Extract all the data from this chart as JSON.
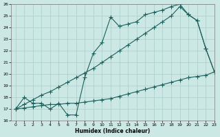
{
  "xlabel": "Humidex (Indice chaleur)",
  "xlim": [
    -0.5,
    23
  ],
  "ylim": [
    16,
    26
  ],
  "xticks": [
    0,
    1,
    2,
    3,
    4,
    5,
    6,
    7,
    8,
    9,
    10,
    11,
    12,
    13,
    14,
    15,
    16,
    17,
    18,
    19,
    20,
    21,
    22,
    23
  ],
  "yticks": [
    16,
    17,
    18,
    19,
    20,
    21,
    22,
    23,
    24,
    25,
    26
  ],
  "bg_color": "#cce8e5",
  "grid_color": "#aaccca",
  "line_color": "#1a5f5a",
  "line1_x": [
    0,
    1,
    2,
    3,
    4,
    5,
    6,
    7,
    8,
    9,
    10,
    11,
    12,
    13,
    14,
    15,
    16,
    17,
    18,
    19,
    20,
    21,
    22,
    23
  ],
  "line1_y": [
    17.0,
    18.0,
    17.5,
    17.5,
    17.0,
    17.5,
    16.5,
    16.5,
    19.7,
    21.8,
    22.7,
    24.9,
    24.1,
    24.3,
    24.5,
    25.1,
    25.3,
    25.5,
    25.8,
    26.0,
    25.1,
    24.6,
    22.2,
    20.2
  ],
  "line2_x": [
    0,
    1,
    2,
    3,
    4,
    5,
    6,
    7,
    8,
    9,
    10,
    11,
    12,
    13,
    14,
    15,
    16,
    17,
    18,
    19,
    20,
    21,
    22,
    23
  ],
  "line2_y": [
    17.0,
    17.4,
    17.8,
    18.2,
    18.5,
    18.9,
    19.3,
    19.7,
    20.1,
    20.5,
    21.0,
    21.5,
    22.0,
    22.5,
    23.0,
    23.5,
    24.0,
    24.5,
    25.0,
    25.8,
    25.1,
    24.6,
    22.2,
    20.2
  ],
  "line3_x": [
    0,
    1,
    2,
    3,
    4,
    5,
    6,
    7,
    8,
    9,
    10,
    11,
    12,
    13,
    14,
    15,
    16,
    17,
    18,
    19,
    20,
    21,
    22,
    23
  ],
  "line3_y": [
    17.0,
    17.1,
    17.2,
    17.3,
    17.4,
    17.4,
    17.5,
    17.5,
    17.6,
    17.7,
    17.8,
    17.9,
    18.1,
    18.3,
    18.5,
    18.7,
    18.9,
    19.1,
    19.3,
    19.5,
    19.7,
    19.8,
    19.9,
    20.2
  ]
}
